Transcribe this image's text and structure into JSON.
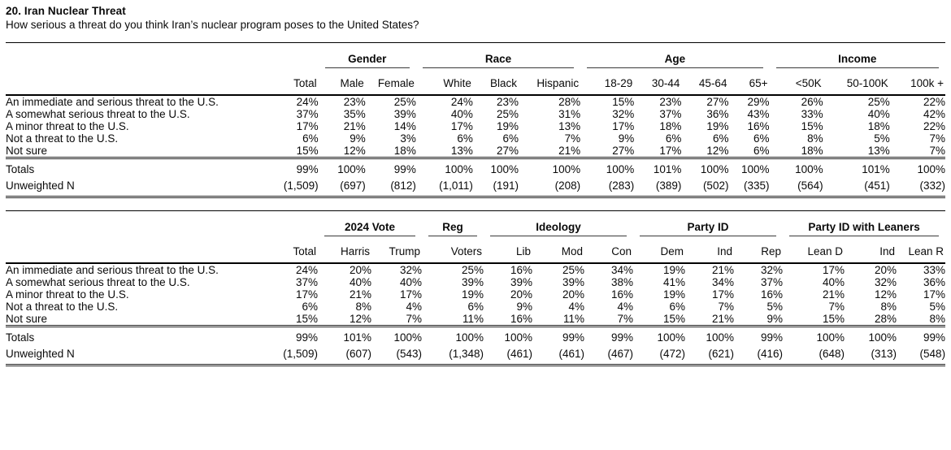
{
  "header": {
    "title": "20. Iran Nuclear Threat",
    "question": "How serious a threat do you think Iran’s nuclear program poses to the United States?"
  },
  "tables": [
    {
      "name": "demographics",
      "groups": [
        {
          "label": "Gender",
          "span": 2
        },
        {
          "label": "Race",
          "span": 3
        },
        {
          "label": "Age",
          "span": 4
        },
        {
          "label": "Income",
          "span": 3
        }
      ],
      "columns": [
        "Total",
        "Male",
        "Female",
        "White",
        "Black",
        "Hispanic",
        "18-29",
        "30-44",
        "45-64",
        "65+",
        "<50K",
        "50-100K",
        "100k +"
      ],
      "rows": [
        {
          "label": "An immediate and serious threat to the U.S.",
          "values": [
            "24%",
            "23%",
            "25%",
            "24%",
            "23%",
            "28%",
            "15%",
            "23%",
            "27%",
            "29%",
            "26%",
            "25%",
            "22%"
          ]
        },
        {
          "label": "A somewhat serious threat to the U.S.",
          "values": [
            "37%",
            "35%",
            "39%",
            "40%",
            "25%",
            "31%",
            "32%",
            "37%",
            "36%",
            "43%",
            "33%",
            "40%",
            "42%"
          ]
        },
        {
          "label": "A minor threat to the U.S.",
          "values": [
            "17%",
            "21%",
            "14%",
            "17%",
            "19%",
            "13%",
            "17%",
            "18%",
            "19%",
            "16%",
            "15%",
            "18%",
            "22%"
          ]
        },
        {
          "label": "Not a threat to the U.S.",
          "values": [
            "6%",
            "9%",
            "3%",
            "6%",
            "6%",
            "7%",
            "9%",
            "6%",
            "6%",
            "6%",
            "8%",
            "5%",
            "7%"
          ]
        },
        {
          "label": "Not sure",
          "values": [
            "15%",
            "12%",
            "18%",
            "13%",
            "27%",
            "21%",
            "27%",
            "17%",
            "12%",
            "6%",
            "18%",
            "13%",
            "7%"
          ]
        }
      ],
      "totals": {
        "label": "Totals",
        "values": [
          "99%",
          "100%",
          "99%",
          "100%",
          "100%",
          "100%",
          "100%",
          "101%",
          "100%",
          "100%",
          "100%",
          "101%",
          "100%"
        ]
      },
      "unweighted": {
        "label": "Unweighted N",
        "values": [
          "(1,509)",
          "(697)",
          "(812)",
          "(1,011)",
          "(191)",
          "(208)",
          "(283)",
          "(389)",
          "(502)",
          "(335)",
          "(564)",
          "(451)",
          "(332)"
        ]
      }
    },
    {
      "name": "politics",
      "groups": [
        {
          "label": "2024 Vote",
          "span": 2
        },
        {
          "label": "Reg",
          "span": 1
        },
        {
          "label": "Ideology",
          "span": 3
        },
        {
          "label": "Party ID",
          "span": 3
        },
        {
          "label": "Party ID with Leaners",
          "span": 3
        }
      ],
      "columns": [
        "Total",
        "Harris",
        "Trump",
        "Voters",
        "Lib",
        "Mod",
        "Con",
        "Dem",
        "Ind",
        "Rep",
        "Lean D",
        "Ind",
        "Lean R"
      ],
      "rows": [
        {
          "label": "An immediate and serious threat to the U.S.",
          "values": [
            "24%",
            "20%",
            "32%",
            "25%",
            "16%",
            "25%",
            "34%",
            "19%",
            "21%",
            "32%",
            "17%",
            "20%",
            "33%"
          ]
        },
        {
          "label": "A somewhat serious threat to the U.S.",
          "values": [
            "37%",
            "40%",
            "40%",
            "39%",
            "39%",
            "39%",
            "38%",
            "41%",
            "34%",
            "37%",
            "40%",
            "32%",
            "36%"
          ]
        },
        {
          "label": "A minor threat to the U.S.",
          "values": [
            "17%",
            "21%",
            "17%",
            "19%",
            "20%",
            "20%",
            "16%",
            "19%",
            "17%",
            "16%",
            "21%",
            "12%",
            "17%"
          ]
        },
        {
          "label": "Not a threat to the U.S.",
          "values": [
            "6%",
            "8%",
            "4%",
            "6%",
            "9%",
            "4%",
            "4%",
            "6%",
            "7%",
            "5%",
            "7%",
            "8%",
            "5%"
          ]
        },
        {
          "label": "Not sure",
          "values": [
            "15%",
            "12%",
            "7%",
            "11%",
            "16%",
            "11%",
            "7%",
            "15%",
            "21%",
            "9%",
            "15%",
            "28%",
            "8%"
          ]
        }
      ],
      "totals": {
        "label": "Totals",
        "values": [
          "99%",
          "101%",
          "100%",
          "100%",
          "100%",
          "99%",
          "99%",
          "100%",
          "100%",
          "99%",
          "100%",
          "100%",
          "99%"
        ]
      },
      "unweighted": {
        "label": "Unweighted N",
        "values": [
          "(1,509)",
          "(607)",
          "(543)",
          "(1,348)",
          "(461)",
          "(461)",
          "(467)",
          "(472)",
          "(621)",
          "(416)",
          "(648)",
          "(313)",
          "(548)"
        ]
      }
    }
  ]
}
